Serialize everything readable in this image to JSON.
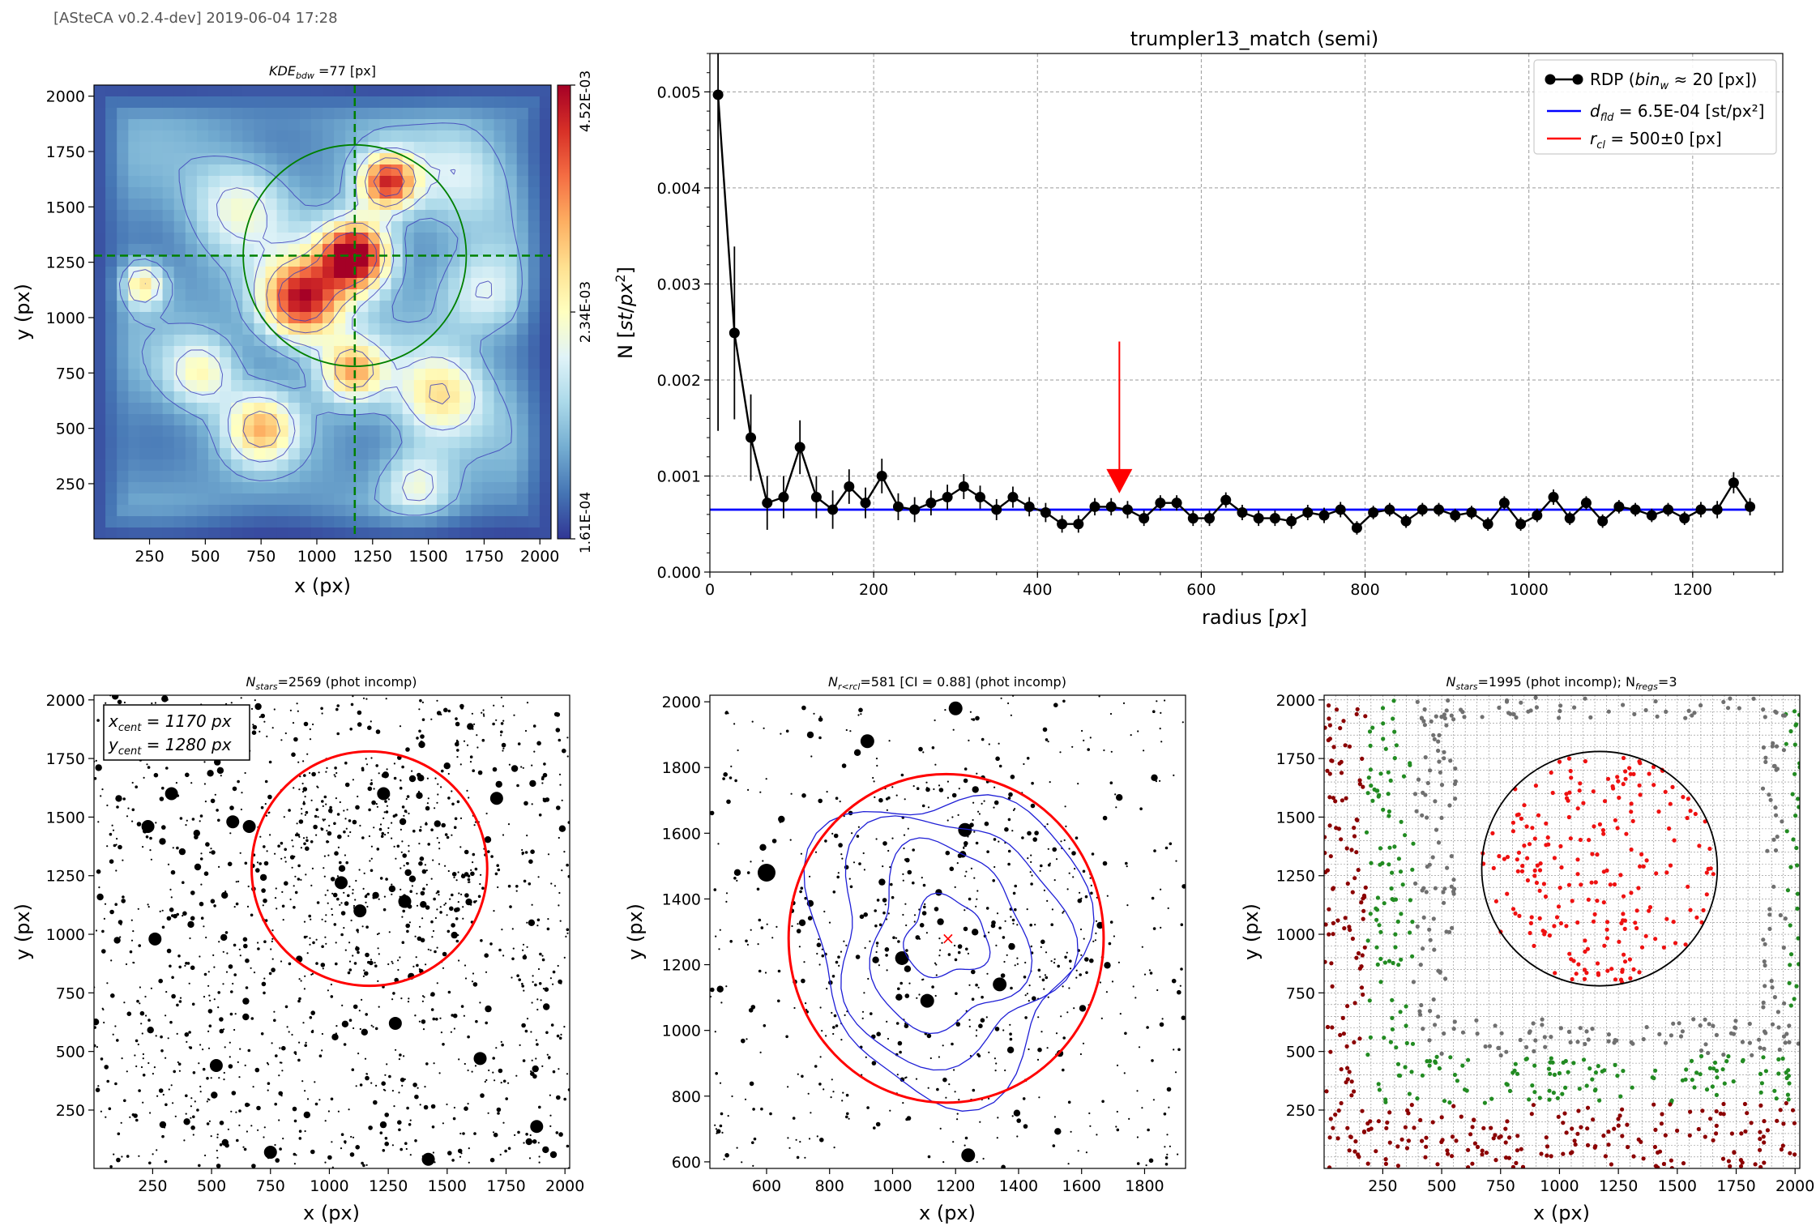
{
  "header": {
    "version_text": "[ASteCA v0.2.4-dev] 2019-06-04 17:28"
  },
  "colors": {
    "cluster_circle": "#ff0000",
    "center_lines": "#008000",
    "field_level": "#0000ff",
    "contours": "#3b3bb8",
    "marker": "#000000"
  },
  "chart_data": [
    {
      "type": "heatmap",
      "id": "kde_map",
      "title_prefix": "KDE",
      "title_sub": "bdw",
      "title_suffix": " =77 [px]",
      "xlabel": "x (px)",
      "ylabel": "y (px)",
      "xlim": [
        1,
        2050
      ],
      "ylim": [
        1,
        2050
      ],
      "xticks": [
        250,
        500,
        750,
        1000,
        1250,
        1500,
        1750,
        2000
      ],
      "yticks": [
        250,
        500,
        750,
        1000,
        1250,
        1500,
        1750,
        2000
      ],
      "colorbar": {
        "colormap": "RdYlBu_r",
        "ticks": [
          "1.61E-04",
          "2.34E-03",
          "4.52E-03"
        ],
        "range": [
          0.000161,
          0.00452
        ]
      },
      "center": {
        "x": 1170,
        "y": 1280
      },
      "radius": 500,
      "density_peaks": [
        {
          "x": 1170,
          "y": 1280,
          "amp": 1.0,
          "s": 110
        },
        {
          "x": 1320,
          "y": 1610,
          "amp": 0.75,
          "s": 90
        },
        {
          "x": 930,
          "y": 1080,
          "amp": 0.85,
          "s": 130
        },
        {
          "x": 1160,
          "y": 760,
          "amp": 0.55,
          "s": 100
        },
        {
          "x": 220,
          "y": 1150,
          "amp": 0.45,
          "s": 70
        },
        {
          "x": 750,
          "y": 500,
          "amp": 0.5,
          "s": 110
        },
        {
          "x": 1550,
          "y": 650,
          "amp": 0.45,
          "s": 140
        },
        {
          "x": 480,
          "y": 750,
          "amp": 0.35,
          "s": 110
        },
        {
          "x": 1450,
          "y": 250,
          "amp": 0.3,
          "s": 110
        },
        {
          "x": 1750,
          "y": 1100,
          "amp": 0.25,
          "s": 130
        },
        {
          "x": 650,
          "y": 1500,
          "amp": 0.3,
          "s": 150
        },
        {
          "x": 1650,
          "y": 1650,
          "amp": 0.25,
          "s": 150
        }
      ]
    },
    {
      "type": "line",
      "id": "rdp",
      "title": "trumpler13_match (semi)",
      "xlabel": "radius [px]",
      "ylabel": "N [st/px²]",
      "xlim": [
        0,
        1310
      ],
      "ylim": [
        0,
        0.0054
      ],
      "xticks": [
        0,
        200,
        400,
        600,
        800,
        1000,
        1200
      ],
      "yticks": [
        0.0,
        0.001,
        0.002,
        0.003,
        0.004,
        0.005
      ],
      "ytick_labels": [
        "0.000",
        "0.001",
        "0.002",
        "0.003",
        "0.004",
        "0.005"
      ],
      "legend_position": "top-right",
      "legend": [
        {
          "prefix": "RDP (",
          "math": "bin",
          "sub": "w",
          "suffix": " ≈ 20 [px])"
        },
        {
          "prefix": "",
          "math": "d",
          "sub": "fld",
          "suffix": " =  6.5E-04 [st/px²]"
        },
        {
          "prefix": "",
          "math": "r",
          "sub": "cl",
          "suffix": " = 500±0 [px]"
        }
      ],
      "field_density": 0.00065,
      "r_cl": 500,
      "arrow": {
        "x": 500,
        "y_top": 0.0024,
        "y_bottom": 0.00082
      },
      "x": [
        10,
        30,
        50,
        70,
        90,
        110,
        130,
        150,
        170,
        190,
        210,
        230,
        250,
        270,
        290,
        310,
        330,
        350,
        370,
        390,
        410,
        430,
        450,
        470,
        490,
        510,
        530,
        550,
        570,
        590,
        610,
        630,
        650,
        670,
        690,
        710,
        730,
        750,
        770,
        790,
        810,
        830,
        850,
        870,
        890,
        910,
        930,
        950,
        970,
        990,
        1010,
        1030,
        1050,
        1070,
        1090,
        1110,
        1130,
        1150,
        1170,
        1190,
        1210,
        1230,
        1250,
        1270
      ],
      "y": [
        0.00497,
        0.00249,
        0.0014,
        0.00072,
        0.00078,
        0.0013,
        0.00078,
        0.00065,
        0.00089,
        0.00072,
        0.001,
        0.00068,
        0.00065,
        0.00072,
        0.00078,
        0.00089,
        0.00078,
        0.00065,
        0.00078,
        0.00068,
        0.00062,
        0.0005,
        0.0005,
        0.00068,
        0.00068,
        0.00065,
        0.00056,
        0.00072,
        0.00072,
        0.00056,
        0.00056,
        0.00075,
        0.00062,
        0.00056,
        0.00056,
        0.00053,
        0.00062,
        0.00059,
        0.00065,
        0.00046,
        0.00062,
        0.00065,
        0.00053,
        0.00065,
        0.00065,
        0.00059,
        0.00062,
        0.0005,
        0.00072,
        0.0005,
        0.00059,
        0.00078,
        0.00056,
        0.00072,
        0.00053,
        0.00068,
        0.00065,
        0.00059,
        0.00065,
        0.00056,
        0.00065,
        0.00065,
        0.00093,
        0.00068
      ],
      "err": [
        0.0035,
        0.0009,
        0.00045,
        0.00028,
        0.00022,
        0.00028,
        0.00022,
        0.0002,
        0.00018,
        0.00016,
        0.00018,
        0.00014,
        0.00013,
        0.00013,
        0.00013,
        0.00013,
        0.00012,
        0.00011,
        0.00011,
        0.0001,
        0.0001,
        9e-05,
        9e-05,
        9e-05,
        9e-05,
        9e-05,
        8e-05,
        8e-05,
        8e-05,
        8e-05,
        8e-05,
        8e-05,
        8e-05,
        8e-05,
        8e-05,
        8e-05,
        8e-05,
        8e-05,
        8e-05,
        7e-05,
        7e-05,
        7e-05,
        7e-05,
        7e-05,
        7e-05,
        7e-05,
        7e-05,
        7e-05,
        7e-05,
        7e-05,
        7e-05,
        8e-05,
        7e-05,
        7e-05,
        7e-05,
        7e-05,
        7e-05,
        7e-05,
        7e-05,
        7e-05,
        8e-05,
        9e-05,
        0.00011,
        9e-05
      ]
    },
    {
      "type": "scatter",
      "id": "full_frame",
      "title_prefix": "N",
      "title_sub": "stars",
      "title_suffix": "=2569 (phot incomp)",
      "xlabel": "x (px)",
      "ylabel": "y (px)",
      "xlim": [
        1,
        2020
      ],
      "ylim": [
        1,
        2020
      ],
      "xticks": [
        250,
        500,
        750,
        1000,
        1250,
        1500,
        1750,
        2000
      ],
      "yticks": [
        250,
        500,
        750,
        1000,
        1250,
        1500,
        1750,
        2000
      ],
      "n_stars": 2569,
      "center_label": {
        "x_math": "x",
        "x_sub": "cent",
        "x_value": " = 1170 px",
        "y_math": "y",
        "y_sub": "cent",
        "y_value": " = 1280 px"
      },
      "center": {
        "x": 1170,
        "y": 1280
      },
      "radius": 500,
      "bright_stars": [
        [
          230,
          1460
        ],
        [
          590,
          1480
        ],
        [
          330,
          1600
        ],
        [
          1230,
          1600
        ],
        [
          1050,
          1220
        ],
        [
          1130,
          1100
        ],
        [
          1320,
          1140
        ],
        [
          1280,
          620
        ],
        [
          1640,
          470
        ],
        [
          1420,
          40
        ],
        [
          1880,
          180
        ],
        [
          750,
          70
        ],
        [
          520,
          440
        ],
        [
          260,
          980
        ],
        [
          660,
          1460
        ],
        [
          1710,
          1580
        ]
      ]
    },
    {
      "type": "scatter",
      "id": "cluster_zoom",
      "title_prefix": "N",
      "title_sub": "r<rcl",
      "title_suffix": "=581 [CI = 0.88] (phot incomp)",
      "xlabel": "x (px)",
      "ylabel": "y (px)",
      "xlim": [
        420,
        1930
      ],
      "ylim": [
        580,
        2020
      ],
      "xticks": [
        600,
        800,
        1000,
        1200,
        1400,
        1600,
        1800
      ],
      "yticks": [
        600,
        800,
        1000,
        1200,
        1400,
        1600,
        1800,
        2000
      ],
      "n_stars": 581,
      "CI": 0.88,
      "center": {
        "x": 1170,
        "y": 1280
      },
      "radius": 500,
      "bright_stars": [
        [
          600,
          1480
        ],
        [
          1030,
          1220
        ],
        [
          1340,
          1140
        ],
        [
          1240,
          620
        ],
        [
          920,
          1880
        ],
        [
          1230,
          1610
        ],
        [
          1200,
          1980
        ],
        [
          1110,
          1090
        ]
      ]
    },
    {
      "type": "scatter",
      "id": "field_regions",
      "title_prefix": "N",
      "title_sub": "stars",
      "title_suffix": "=1995 (phot incomp); N",
      "title_sub2": "fregs",
      "title_suffix2": "=3",
      "xlabel": "x (px)",
      "ylabel": "y (px)",
      "xlim": [
        1,
        2020
      ],
      "ylim": [
        1,
        2020
      ],
      "xticks": [
        250,
        500,
        750,
        1000,
        1250,
        1500,
        1750,
        2000
      ],
      "yticks": [
        250,
        500,
        750,
        1000,
        1250,
        1500,
        1750,
        2000
      ],
      "n_stars": 1995,
      "n_fregs": 3,
      "center": {
        "x": 1170,
        "y": 1280
      },
      "radius": 500,
      "region_colors": [
        "#8b0000",
        "#228b22",
        "#707070"
      ],
      "cluster_color": "#ee1111"
    }
  ]
}
